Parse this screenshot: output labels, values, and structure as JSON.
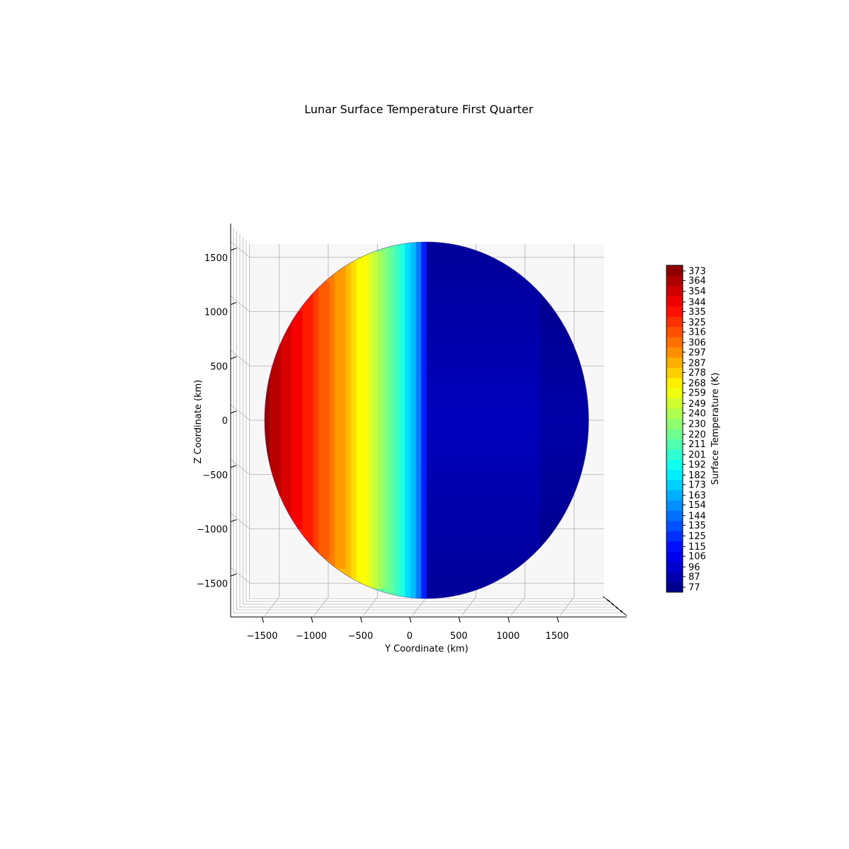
{
  "chart_data": {
    "type": "surface3d",
    "title": "Lunar Surface Temperature First Quarter",
    "xlabel": "Y Coordinate (km)",
    "ylabel": "Z Coordinate (km)",
    "colorbar_label": "Surface Temperature (K)",
    "colormap": "jet",
    "view": "side view along X axis (orthographic-like), lit hemisphere toward negative Y",
    "sphere_radius_km": 1737,
    "xlim": [
      -1900,
      1900
    ],
    "ylim": [
      -1900,
      1900
    ],
    "x_ticks": [
      -1500,
      -1000,
      -500,
      0,
      500,
      1000,
      1500
    ],
    "x_tick_labels": [
      "−1500",
      "−1000",
      "−500",
      "0",
      "500",
      "1000",
      "1500"
    ],
    "y_ticks": [
      -1500,
      -1000,
      -500,
      0,
      500,
      1000,
      1500
    ],
    "y_tick_labels": [
      "−1500",
      "−1000",
      "−500",
      "0",
      "500",
      "1000",
      "1500"
    ],
    "temperature_range_K": [
      77,
      378
    ],
    "colorbar_ticks": [
      77,
      87,
      96,
      106,
      115,
      125,
      135,
      144,
      154,
      163,
      173,
      182,
      192,
      201,
      211,
      220,
      230,
      240,
      249,
      259,
      268,
      278,
      287,
      297,
      306,
      316,
      325,
      335,
      344,
      354,
      364,
      373
    ],
    "night_side_temperature_K": 95,
    "grid": true,
    "colors": {
      "pane": "#f2f2f2",
      "grid": "#b0b0b0",
      "axis": "#000000"
    }
  }
}
